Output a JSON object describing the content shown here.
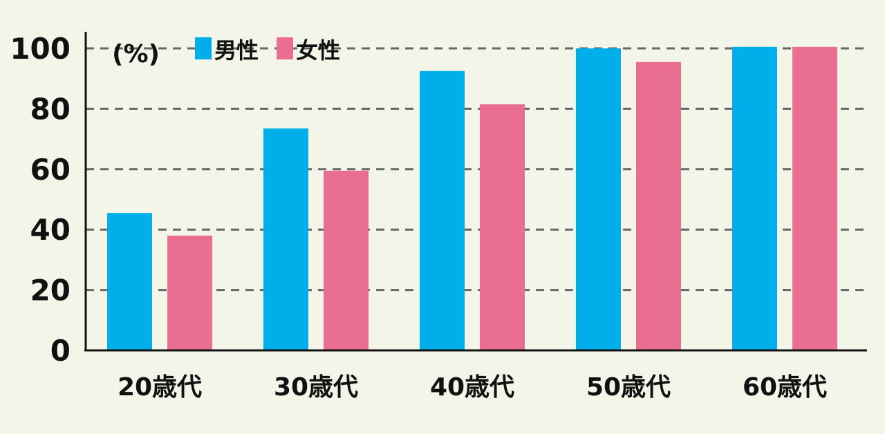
{
  "chart_data": {
    "type": "bar",
    "title": "",
    "xlabel": "",
    "ylabel": "",
    "unit_label": "(%)",
    "ylim": [
      0,
      100
    ],
    "yticks": [
      0,
      20,
      40,
      60,
      80,
      100
    ],
    "grid": true,
    "legend_position": "top-left",
    "categories": [
      "20歳代",
      "30歳代",
      "40歳代",
      "50歳代",
      "60歳代"
    ],
    "series": [
      {
        "name": "男性",
        "color": "#00aeea",
        "values": [
          45.5,
          73.5,
          92.5,
          100,
          100.5
        ]
      },
      {
        "name": "女性",
        "color": "#ea6e92",
        "values": [
          38,
          59.5,
          81.5,
          95.5,
          100.5
        ]
      }
    ]
  }
}
